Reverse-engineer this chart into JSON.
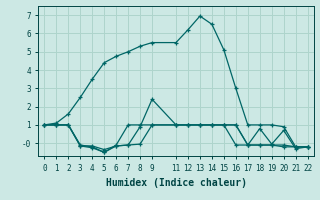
{
  "xlabel": "Humidex (Indice chaleur)",
  "bg_color": "#cce8e4",
  "grid_color": "#aed4cc",
  "line_color": "#006666",
  "xlim": [
    -0.5,
    22.5
  ],
  "ylim": [
    -0.7,
    7.5
  ],
  "yticks": [
    0,
    1,
    2,
    3,
    4,
    5,
    6,
    7
  ],
  "ytick_labels": [
    "-0",
    "1",
    "2",
    "3",
    "4",
    "5",
    "6",
    "7"
  ],
  "xticks": [
    0,
    1,
    2,
    3,
    4,
    5,
    6,
    7,
    8,
    9,
    11,
    12,
    13,
    14,
    15,
    16,
    17,
    18,
    19,
    20,
    21,
    22
  ],
  "series": [
    {
      "x": [
        0,
        1,
        2,
        3,
        4,
        5,
        6,
        7,
        8,
        9,
        11,
        12,
        13,
        14,
        15,
        16,
        17,
        18,
        19,
        20,
        21,
        22
      ],
      "y": [
        1.0,
        1.1,
        1.6,
        2.5,
        3.5,
        4.4,
        4.75,
        5.0,
        5.3,
        5.5,
        5.5,
        6.2,
        6.95,
        6.5,
        5.1,
        3.0,
        1.0,
        1.0,
        1.0,
        0.9,
        -0.2,
        -0.2
      ]
    },
    {
      "x": [
        0,
        1,
        2,
        3,
        4,
        5,
        6,
        7,
        8,
        9,
        11,
        12,
        13,
        14,
        15,
        16,
        17,
        18,
        19,
        20,
        21,
        22
      ],
      "y": [
        1.0,
        1.0,
        1.0,
        -0.15,
        -0.15,
        -0.35,
        -0.15,
        -0.1,
        0.9,
        2.4,
        1.0,
        1.0,
        1.0,
        1.0,
        1.0,
        1.0,
        -0.1,
        0.8,
        -0.05,
        0.7,
        -0.3,
        -0.2
      ]
    },
    {
      "x": [
        0,
        1,
        2,
        3,
        4,
        5,
        6,
        7,
        8,
        9,
        11,
        12,
        13,
        14,
        15,
        16,
        17,
        18,
        19,
        20,
        21,
        22
      ],
      "y": [
        1.0,
        1.0,
        1.0,
        -0.15,
        -0.25,
        -0.5,
        -0.15,
        -0.1,
        -0.05,
        1.0,
        1.0,
        1.0,
        1.0,
        1.0,
        1.0,
        1.0,
        -0.1,
        -0.1,
        -0.1,
        -0.1,
        -0.2,
        -0.2
      ]
    },
    {
      "x": [
        0,
        1,
        2,
        3,
        4,
        5,
        6,
        7,
        8,
        9,
        11,
        12,
        13,
        14,
        15,
        16,
        17,
        18,
        19,
        20,
        21,
        22
      ],
      "y": [
        1.0,
        1.0,
        1.0,
        -0.1,
        -0.2,
        -0.5,
        -0.1,
        1.0,
        1.0,
        1.0,
        1.0,
        1.0,
        1.0,
        1.0,
        1.0,
        -0.1,
        -0.1,
        -0.1,
        -0.1,
        -0.2,
        -0.2,
        -0.2
      ]
    }
  ]
}
